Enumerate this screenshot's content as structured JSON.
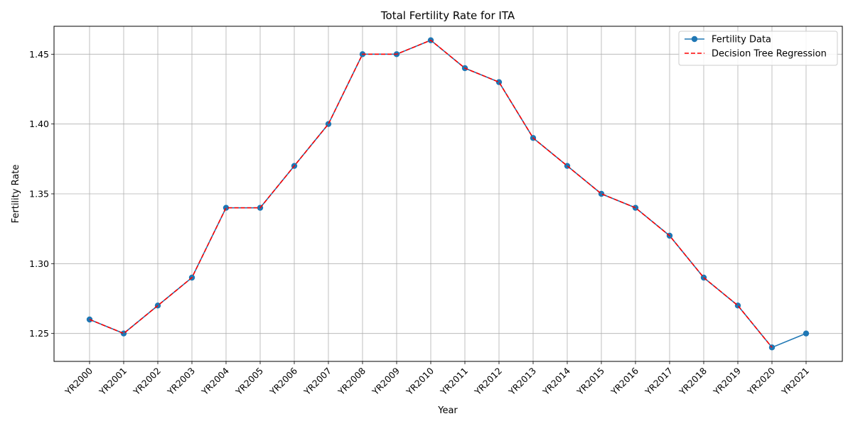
{
  "chart_data": {
    "type": "line",
    "title": "Total Fertility Rate for ITA",
    "xlabel": "Year",
    "ylabel": "Fertility Rate",
    "categories": [
      "YR2000",
      "YR2001",
      "YR2002",
      "YR2003",
      "YR2004",
      "YR2005",
      "YR2006",
      "YR2007",
      "YR2008",
      "YR2009",
      "YR2010",
      "YR2011",
      "YR2012",
      "YR2013",
      "YR2014",
      "YR2015",
      "YR2016",
      "YR2017",
      "YR2018",
      "YR2019",
      "YR2020",
      "YR2021"
    ],
    "ylim": [
      1.23,
      1.47
    ],
    "yticks": [
      "1.25",
      "1.30",
      "1.35",
      "1.40",
      "1.45"
    ],
    "grid": true,
    "legend_position": "top-right",
    "series": [
      {
        "name": "Fertility Data",
        "style": "solid-with-markers",
        "color": "#1f77b4",
        "values": [
          1.26,
          1.25,
          1.27,
          1.29,
          1.34,
          1.34,
          1.37,
          1.4,
          1.45,
          1.45,
          1.46,
          1.44,
          1.43,
          1.39,
          1.37,
          1.35,
          1.34,
          1.32,
          1.29,
          1.27,
          1.24,
          1.25
        ]
      },
      {
        "name": "Decision Tree Regression",
        "style": "dashed",
        "color": "#ff0000",
        "values": [
          1.26,
          1.25,
          1.27,
          1.29,
          1.34,
          1.34,
          1.37,
          1.4,
          1.45,
          1.45,
          1.46,
          1.44,
          1.43,
          1.39,
          1.37,
          1.35,
          1.34,
          1.32,
          1.29,
          1.27,
          1.24,
          null
        ]
      }
    ]
  }
}
